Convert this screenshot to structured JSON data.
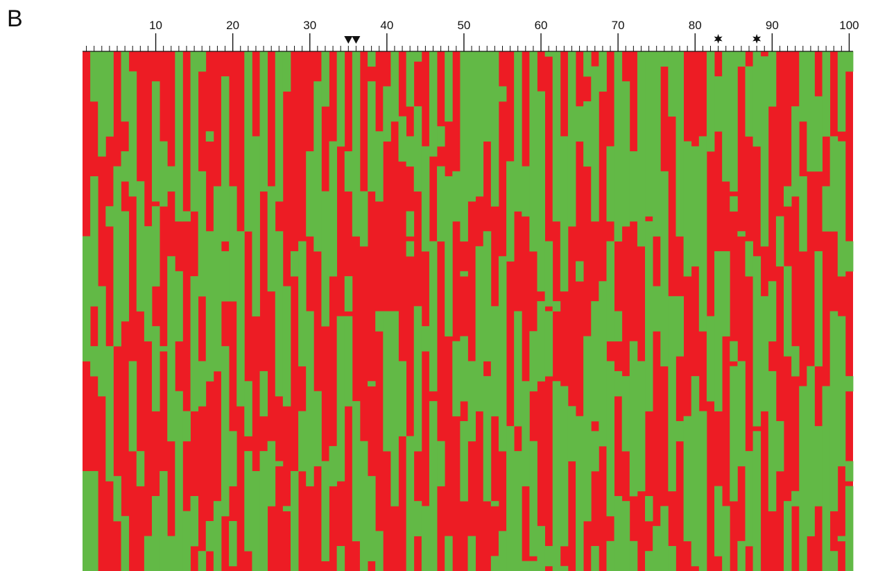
{
  "panel_label": "B",
  "colors": {
    "red": "#ED1C24",
    "green": "#62B946",
    "axis": "#111111"
  },
  "chart_data": {
    "type": "heatmap",
    "x_range": [
      1,
      100
    ],
    "tick_labels": [
      "10",
      "20",
      "30",
      "40",
      "50",
      "60",
      "70",
      "80",
      "90",
      "100"
    ],
    "tick_values": [
      10,
      20,
      30,
      40,
      50,
      60,
      70,
      80,
      90,
      100
    ],
    "marker_positions": {
      "triangles": [
        35,
        36
      ],
      "stars": [
        83,
        88
      ]
    },
    "legend": "none",
    "grid": false,
    "rows": 104,
    "columns": 100,
    "note_values": "matrix of binary states (red / green) per column position"
  }
}
